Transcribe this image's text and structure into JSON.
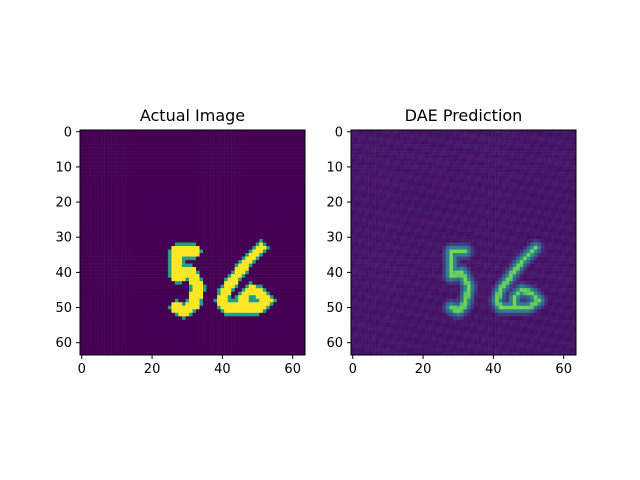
{
  "chart_data": [
    {
      "type": "heatmap",
      "title": "Actual Image",
      "colormap": "viridis",
      "grid_size": [
        64,
        64
      ],
      "xlim": [
        0,
        63
      ],
      "ylim": [
        63,
        0
      ],
      "xticks": [
        0,
        20,
        40,
        60
      ],
      "yticks": [
        0,
        10,
        20,
        30,
        40,
        50,
        60
      ],
      "background_value": 0.0,
      "strokes": [
        {
          "digit": "5",
          "value": 1.0,
          "width": 1.6,
          "points": [
            [
              32,
              34
            ],
            [
              27,
              34
            ],
            [
              27,
              41
            ],
            [
              31,
              40
            ],
            [
              33,
              44
            ],
            [
              32,
              49
            ],
            [
              29,
              51
            ],
            [
              27,
              50
            ]
          ]
        },
        {
          "digit": "6",
          "value": 1.0,
          "width": 1.4,
          "points": [
            [
              51,
              33
            ],
            [
              47,
              37
            ],
            [
              44,
              41
            ],
            [
              41,
              45
            ],
            [
              40,
              48
            ],
            [
              41,
              50
            ],
            [
              45,
              50
            ],
            [
              50,
              50
            ],
            [
              53,
              48
            ],
            [
              51,
              46
            ],
            [
              48,
              45
            ],
            [
              46,
              47
            ],
            [
              46,
              50
            ]
          ]
        }
      ]
    },
    {
      "type": "heatmap",
      "title": "DAE Prediction",
      "colormap": "viridis",
      "grid_size": [
        64,
        64
      ],
      "xlim": [
        0,
        63
      ],
      "ylim": [
        63,
        0
      ],
      "xticks": [
        0,
        20,
        40,
        60
      ],
      "yticks": [
        0,
        10,
        20,
        30,
        40,
        50,
        60
      ],
      "background_value": 0.06,
      "strokes": [
        {
          "digit": "5",
          "value": 0.62,
          "width": 1.3,
          "points": [
            [
              32,
              34
            ],
            [
              28,
              34
            ],
            [
              28,
              41
            ],
            [
              31,
              40
            ],
            [
              33,
              44
            ],
            [
              32,
              49
            ],
            [
              30,
              51
            ],
            [
              28,
              50
            ]
          ]
        },
        {
          "digit": "6",
          "value": 0.62,
          "width": 1.2,
          "points": [
            [
              52,
              33
            ],
            [
              48,
              37
            ],
            [
              45,
              41
            ],
            [
              42,
              45
            ],
            [
              41,
              48
            ],
            [
              42,
              50
            ],
            [
              45,
              50
            ],
            [
              50,
              50
            ],
            [
              53,
              48
            ],
            [
              51,
              46
            ],
            [
              48,
              45
            ],
            [
              46,
              47
            ],
            [
              46,
              50
            ]
          ]
        }
      ]
    }
  ]
}
